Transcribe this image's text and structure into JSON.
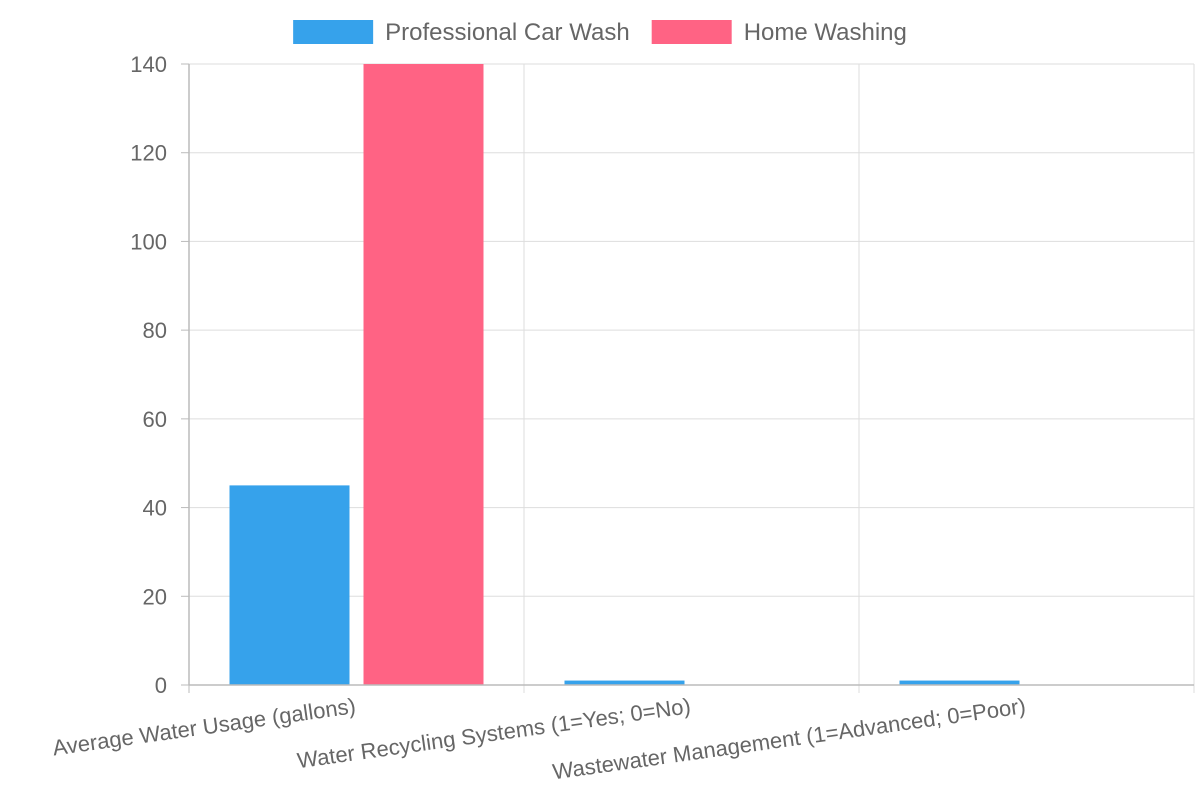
{
  "chart_data": {
    "type": "bar",
    "title": "",
    "xlabel": "",
    "ylabel": "",
    "categories": [
      "Average Water Usage (gallons)",
      "Water Recycling Systems (1=Yes; 0=No)",
      "Wastewater Management (1=Advanced; 0=Poor)"
    ],
    "series": [
      {
        "name": "Professional Car Wash",
        "color": "#36A2EB",
        "values": [
          45,
          1,
          1
        ]
      },
      {
        "name": "Home Washing",
        "color": "#FF6384",
        "values": [
          140,
          0,
          0
        ]
      }
    ],
    "ylim": [
      0,
      140
    ],
    "yticks": [
      "0",
      "20",
      "40",
      "60",
      "80",
      "100",
      "120",
      "140"
    ],
    "grid": true,
    "legend_position": "top-center"
  }
}
